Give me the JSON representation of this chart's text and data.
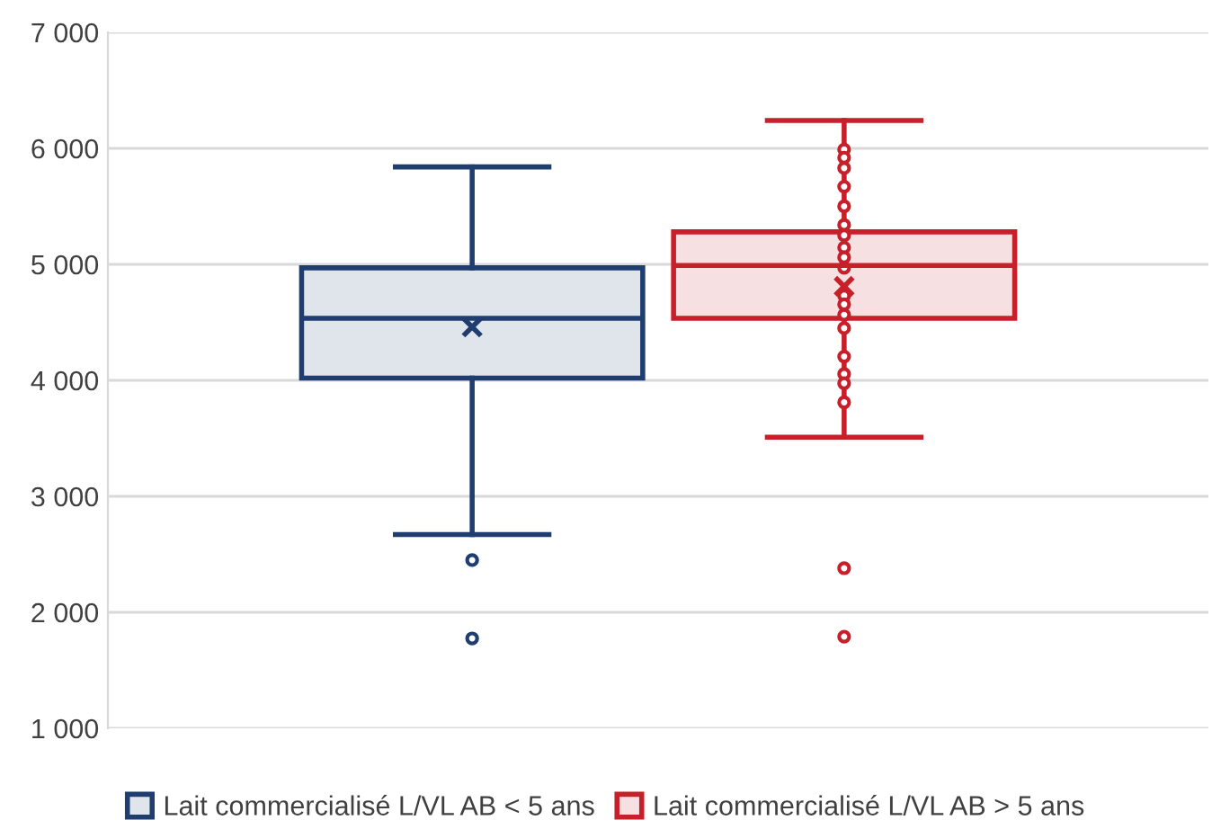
{
  "chart_data": {
    "type": "box",
    "categories": [
      null
    ],
    "series": [
      {
        "name": "Lait commercialisé L/VL AB < 5 ans",
        "color": "#1f3d6e",
        "boxes": [
          {
            "low": 2670,
            "q1": 4020,
            "median": 4535,
            "q3": 4970,
            "high": 5840,
            "mean": 4460,
            "outliers": [
              2450,
              1775
            ]
          }
        ]
      },
      {
        "name": "Lait commercialisé L/VL AB > 5 ans",
        "color": "#c8202a",
        "boxes": [
          {
            "low": 3510,
            "q1": 4535,
            "median": 4990,
            "q3": 5280,
            "high": 6240,
            "mean": 4810,
            "outliers": [
              5990,
              5920,
              5830,
              5670,
              5500,
              5340,
              5250,
              5145,
              5060,
              4970,
              4730,
              4655,
              4565,
              4450,
              4205,
              4055,
              3975,
              3810,
              2380,
              1790
            ]
          }
        ]
      }
    ],
    "ylim": [
      1000,
      7000
    ],
    "yticks": [
      {
        "value": 1000,
        "label": "1 000"
      },
      {
        "value": 2000,
        "label": "2 000"
      },
      {
        "value": 3000,
        "label": "3 000"
      },
      {
        "value": 4000,
        "label": "4 000"
      },
      {
        "value": 5000,
        "label": "5 000"
      },
      {
        "value": 6000,
        "label": "6 000"
      },
      {
        "value": 7000,
        "label": "7 000"
      }
    ],
    "grid": "y",
    "legend": "bottom",
    "tick_labels": "y"
  }
}
